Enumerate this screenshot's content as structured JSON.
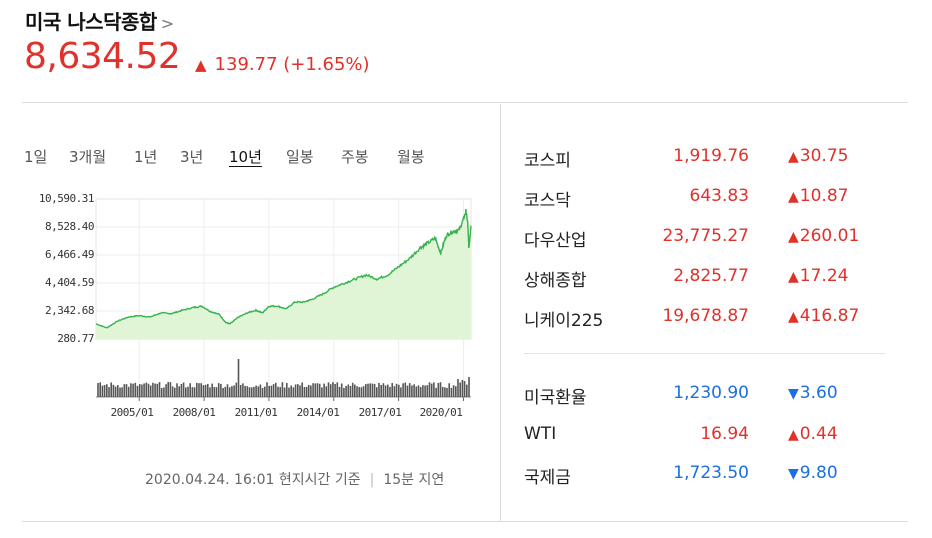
{
  "header": {
    "title": "미국 나스닥종합",
    "chevron": ">",
    "price": "8,634.52",
    "change_arrow": "▲",
    "change": "139.77 (+1.65%)",
    "up_color": "#e0312b",
    "down_color": "#1c6fe0"
  },
  "tabs": [
    "1일",
    "3개월",
    "1년",
    "3년",
    "10년",
    "일봉",
    "주봉",
    "월봉"
  ],
  "active_tab": "10년",
  "footer": {
    "timestamp": "2020.04.24. 16:01 현지시간 기준",
    "separator": "|",
    "delay": "15분 지연"
  },
  "chart_data": {
    "type": "area",
    "y_tick_labels": [
      "10,590.31",
      "8,528.40",
      "6,466.49",
      "4,404.59",
      "2,342.68",
      "280.77"
    ],
    "y_ticks": [
      10590.31,
      8528.4,
      6466.49,
      4404.59,
      2342.68,
      280.77
    ],
    "x_tick_labels": [
      "2005/01",
      "2008/01",
      "2011/01",
      "2014/01",
      "2017/01",
      "2020/01"
    ],
    "x_ticks": [
      2005,
      2008,
      2011,
      2014,
      2017,
      2020
    ],
    "x_range": [
      2003.0,
      2020.35
    ],
    "y_range": [
      280.77,
      10590.31
    ],
    "series": [
      {
        "x": [
          2003.0,
          2003.5,
          2004.0,
          2004.5,
          2005.0,
          2005.5,
          2006.0,
          2006.5,
          2007.0,
          2007.5,
          2007.9,
          2008.3,
          2008.7,
          2009.0,
          2009.2,
          2009.6,
          2010.0,
          2010.4,
          2010.7,
          2011.0,
          2011.4,
          2011.8,
          2012.2,
          2012.6,
          2013.0,
          2013.5,
          2014.0,
          2014.5,
          2015.0,
          2015.5,
          2016.0,
          2016.5,
          2017.0,
          2017.5,
          2018.0,
          2018.3,
          2018.7,
          2018.95,
          2019.2,
          2019.5,
          2019.8,
          2020.0,
          2020.12,
          2020.2,
          2020.25,
          2020.3,
          2020.35
        ],
        "y": [
          1400,
          1100,
          1600,
          1900,
          2000,
          1900,
          2200,
          2150,
          2400,
          2600,
          2700,
          2300,
          2100,
          1500,
          1400,
          1900,
          2200,
          2400,
          2200,
          2700,
          2700,
          2500,
          3000,
          3000,
          3200,
          3600,
          4100,
          4400,
          4700,
          5000,
          4700,
          5000,
          5600,
          6200,
          7000,
          7300,
          7700,
          6600,
          7900,
          8200,
          8300,
          9100,
          9700,
          8800,
          7000,
          7800,
          8634.52
        ],
        "color": "#37b24d",
        "fill": "#dff5d6"
      }
    ],
    "volume_color": "#555555",
    "grid": true
  },
  "indices": [
    {
      "name": "코스피",
      "value": "1,919.76",
      "arrow": "▲",
      "change": "30.75",
      "dir": "up"
    },
    {
      "name": "코스닥",
      "value": "643.83",
      "arrow": "▲",
      "change": "10.87",
      "dir": "up"
    },
    {
      "name": "다우산업",
      "value": "23,775.27",
      "arrow": "▲",
      "change": "260.01",
      "dir": "up"
    },
    {
      "name": "상해종합",
      "value": "2,825.77",
      "arrow": "▲",
      "change": "17.24",
      "dir": "up"
    },
    {
      "name": "니케이225",
      "value": "19,678.87",
      "arrow": "▲",
      "change": "416.87",
      "dir": "up"
    }
  ],
  "markets": [
    {
      "name": "미국환율",
      "value": "1,230.90",
      "arrow": "▼",
      "change": "3.60",
      "dir": "dn"
    },
    {
      "name": "WTI",
      "value": "16.94",
      "arrow": "▲",
      "change": "0.44",
      "dir": "up"
    },
    {
      "name": "국제금",
      "value": "1,723.50",
      "arrow": "▼",
      "change": "9.80",
      "dir": "dn"
    }
  ]
}
